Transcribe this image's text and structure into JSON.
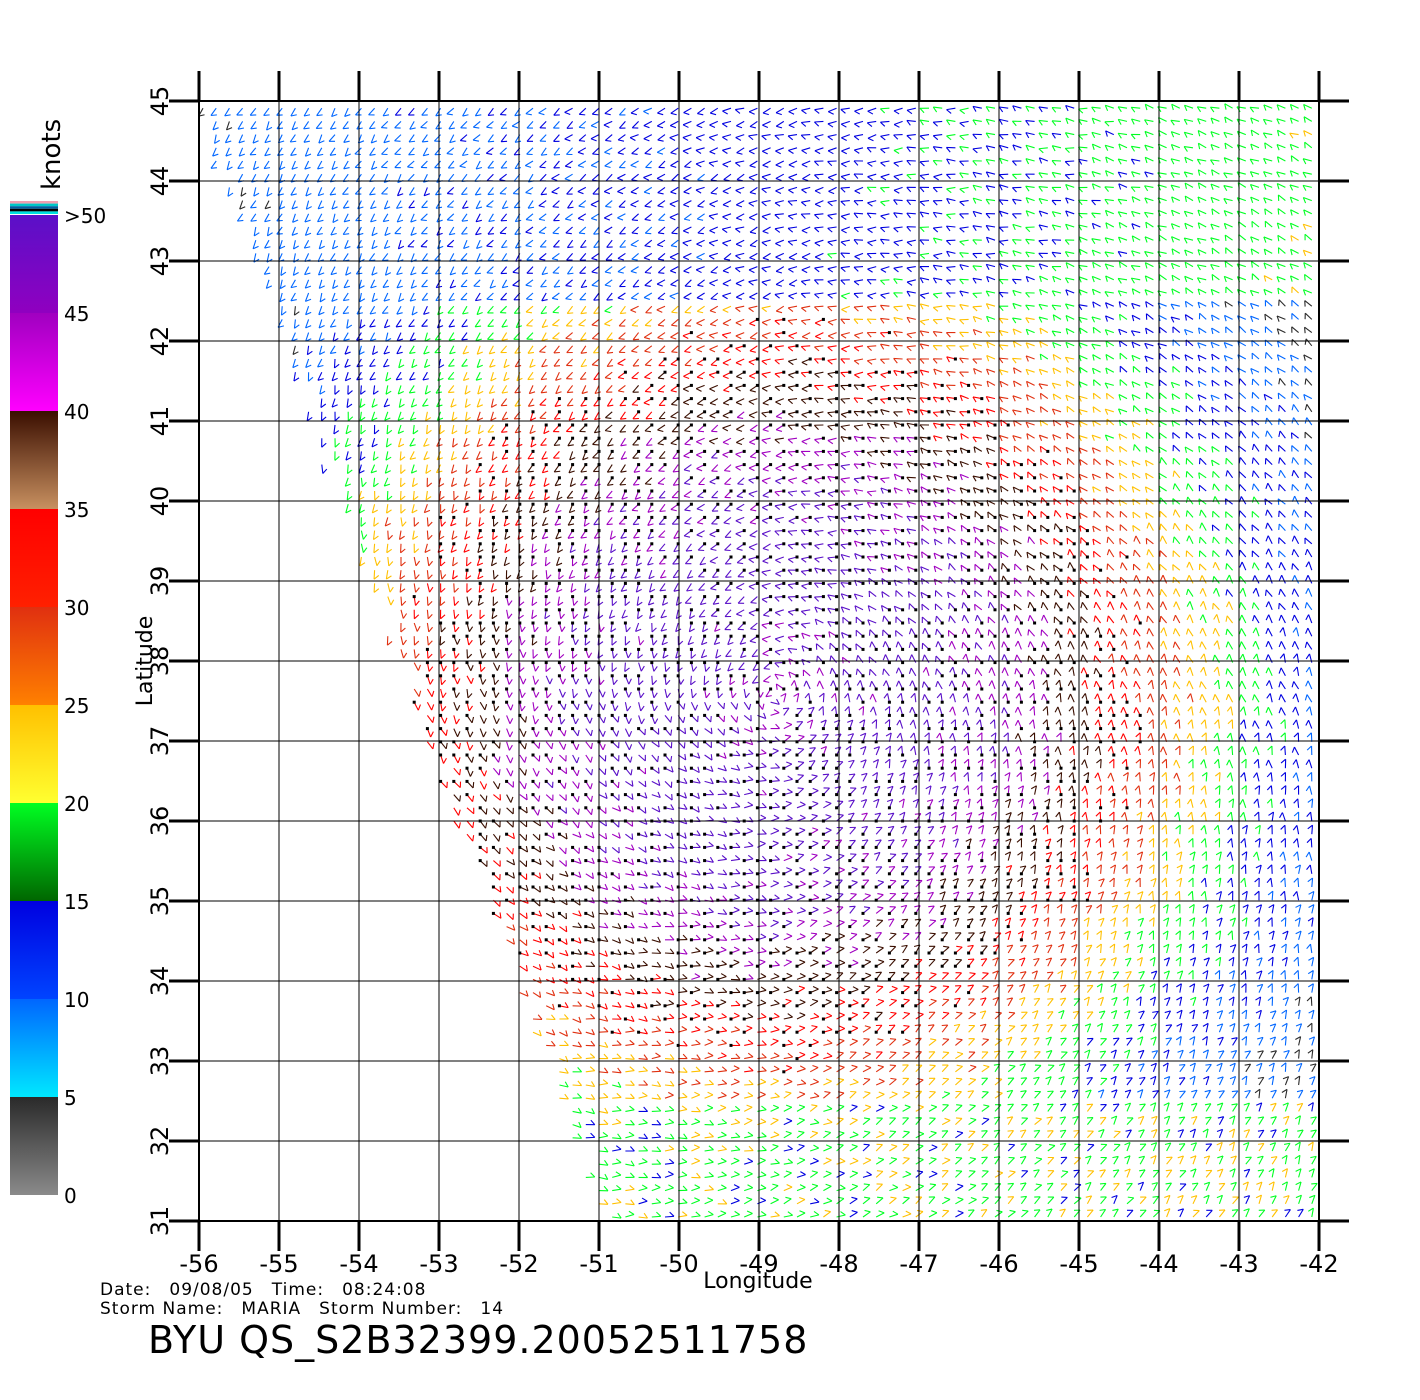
{
  "colorbar": {
    "unit_label": "knots",
    "segments": [
      {
        "from": 0,
        "to": 5,
        "top": "#2a2a2a",
        "bottom": "#8a8a8a"
      },
      {
        "from": 5,
        "to": 10,
        "top": "#0066ff",
        "bottom": "#00e8ff"
      },
      {
        "from": 10,
        "to": 15,
        "top": "#0000e0",
        "bottom": "#0044ff"
      },
      {
        "from": 15,
        "to": 20,
        "top": "#00ff22",
        "bottom": "#006600"
      },
      {
        "from": 20,
        "to": 25,
        "top": "#ffc000",
        "bottom": "#ffff30"
      },
      {
        "from": 25,
        "to": 30,
        "top": "#e03010",
        "bottom": "#ff8000"
      },
      {
        "from": 30,
        "to": 35,
        "top": "#ff0000",
        "bottom": "#ff2000"
      },
      {
        "from": 35,
        "to": 40,
        "top": "#3a0e00",
        "bottom": "#c89060"
      },
      {
        "from": 40,
        "to": 45,
        "top": "#a000c0",
        "bottom": "#ff00ff"
      },
      {
        "from": 45,
        "to": 50,
        "top": "#5a10c8",
        "bottom": "#9000c0"
      }
    ],
    "tick_labels": [
      "0",
      "5",
      "10",
      "15",
      "20",
      "25",
      "30",
      "35",
      "40",
      "45",
      ">50"
    ],
    "top_stripes": [
      "#f0a0b0",
      "#00c8c8",
      "#0060a0",
      "#000000",
      "#00e0e0"
    ]
  },
  "map": {
    "lon_range": [
      -56,
      -42
    ],
    "lat_range": [
      31,
      45
    ],
    "x_ticks": [
      "-56",
      "-55",
      "-54",
      "-53",
      "-52",
      "-51",
      "-50",
      "-49",
      "-48",
      "-47",
      "-46",
      "-45",
      "-44",
      "-43",
      "-42"
    ],
    "y_ticks": [
      "31",
      "32",
      "33",
      "34",
      "35",
      "36",
      "37",
      "38",
      "39",
      "40",
      "41",
      "42",
      "43",
      "44",
      "45"
    ],
    "xlabel": "Longitude",
    "ylabel": "Latitude",
    "storm_center": {
      "lon": -48.8,
      "lat": 37.6
    },
    "swath_west_edge": [
      [
        -56,
        45
      ],
      [
        -51,
        31.2
      ]
    ]
  },
  "info": {
    "date_label": "Date:",
    "date": "09/08/05",
    "time_label": "Time:",
    "time": "08:24:08",
    "storm_name_label": "Storm Name:",
    "storm_name": "MARIA",
    "storm_number_label": "Storm Number:",
    "storm_number": "14"
  },
  "title": "BYU QS_S2B32399.20052511758"
}
